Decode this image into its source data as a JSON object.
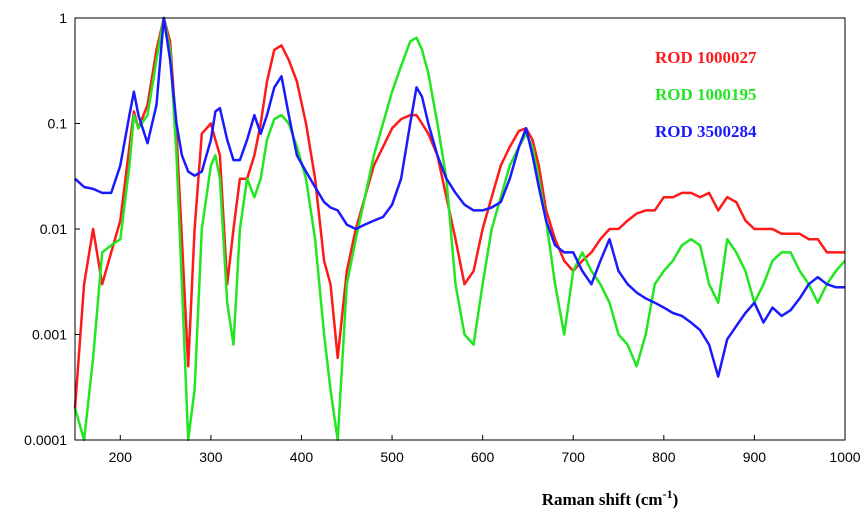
{
  "chart_data": {
    "type": "line",
    "xlabel": "Raman shift (cm",
    "xlabel_sup": "-1",
    "xlabel_close": ")",
    "xlim": [
      150,
      1000
    ],
    "ylim": [
      0.0001,
      1
    ],
    "yscale": "log",
    "grid": false,
    "legend_placement": "top-right",
    "x_ticks": [
      {
        "value": 200,
        "label": "200"
      },
      {
        "value": 300,
        "label": "300"
      },
      {
        "value": 400,
        "label": "400"
      },
      {
        "value": 500,
        "label": "500"
      },
      {
        "value": 600,
        "label": "600"
      },
      {
        "value": 700,
        "label": "700"
      },
      {
        "value": 800,
        "label": "800"
      },
      {
        "value": 900,
        "label": "900"
      },
      {
        "value": 1000,
        "label": "1000"
      }
    ],
    "y_ticks": [
      {
        "value": 1,
        "label": "1"
      },
      {
        "value": 0.1,
        "label": "0.1"
      },
      {
        "value": 0.01,
        "label": "0.01"
      },
      {
        "value": 0.001,
        "label": "0.001"
      },
      {
        "value": 0.0001,
        "label": "0.0001"
      }
    ],
    "series": [
      {
        "name": "ROD 1000027",
        "color": "#ff1a1a",
        "x": [
          150,
          160,
          170,
          180,
          190,
          200,
          210,
          215,
          220,
          230,
          240,
          248,
          255,
          262,
          268,
          275,
          282,
          290,
          300,
          305,
          310,
          318,
          325,
          332,
          340,
          348,
          355,
          362,
          370,
          378,
          386,
          395,
          405,
          415,
          425,
          432,
          440,
          450,
          460,
          470,
          480,
          490,
          500,
          510,
          520,
          527,
          533,
          540,
          550,
          560,
          570,
          580,
          590,
          600,
          610,
          620,
          630,
          640,
          648,
          655,
          662,
          670,
          680,
          690,
          700,
          710,
          720,
          730,
          740,
          750,
          760,
          770,
          780,
          790,
          800,
          810,
          820,
          830,
          840,
          850,
          860,
          870,
          880,
          890,
          900,
          910,
          920,
          930,
          940,
          950,
          960,
          970,
          980,
          990,
          1000
        ],
        "y": [
          0.0002,
          0.003,
          0.01,
          0.003,
          0.006,
          0.012,
          0.06,
          0.13,
          0.09,
          0.15,
          0.5,
          1.0,
          0.6,
          0.08,
          0.008,
          0.0005,
          0.01,
          0.08,
          0.1,
          0.07,
          0.05,
          0.003,
          0.01,
          0.03,
          0.03,
          0.05,
          0.1,
          0.25,
          0.5,
          0.55,
          0.4,
          0.25,
          0.1,
          0.03,
          0.005,
          0.003,
          0.0006,
          0.004,
          0.01,
          0.02,
          0.04,
          0.06,
          0.09,
          0.11,
          0.12,
          0.12,
          0.1,
          0.08,
          0.05,
          0.02,
          0.008,
          0.003,
          0.004,
          0.01,
          0.02,
          0.04,
          0.06,
          0.085,
          0.09,
          0.07,
          0.04,
          0.015,
          0.008,
          0.005,
          0.004,
          0.005,
          0.006,
          0.008,
          0.01,
          0.01,
          0.012,
          0.014,
          0.015,
          0.015,
          0.02,
          0.02,
          0.022,
          0.022,
          0.02,
          0.022,
          0.015,
          0.02,
          0.018,
          0.012,
          0.01,
          0.01,
          0.01,
          0.009,
          0.009,
          0.009,
          0.008,
          0.008,
          0.006,
          0.006,
          0.006
        ]
      },
      {
        "name": "ROD 1000195",
        "color": "#22e622",
        "x": [
          150,
          160,
          170,
          180,
          190,
          200,
          210,
          215,
          220,
          230,
          240,
          248,
          255,
          262,
          268,
          275,
          282,
          290,
          300,
          305,
          310,
          318,
          325,
          332,
          340,
          348,
          355,
          362,
          370,
          378,
          386,
          395,
          405,
          415,
          425,
          432,
          440,
          450,
          460,
          470,
          480,
          490,
          500,
          510,
          520,
          527,
          533,
          540,
          550,
          560,
          570,
          580,
          590,
          600,
          610,
          620,
          630,
          640,
          648,
          655,
          662,
          670,
          680,
          690,
          700,
          710,
          720,
          730,
          740,
          750,
          760,
          770,
          780,
          790,
          800,
          810,
          820,
          830,
          840,
          850,
          860,
          870,
          880,
          890,
          900,
          910,
          920,
          930,
          940,
          950,
          960,
          970,
          980,
          990,
          1000
        ],
        "y": [
          0.0002,
          0.0001,
          0.0006,
          0.006,
          0.007,
          0.008,
          0.04,
          0.12,
          0.09,
          0.12,
          0.4,
          1.0,
          0.5,
          0.05,
          0.003,
          0.0001,
          0.0003,
          0.01,
          0.04,
          0.05,
          0.03,
          0.002,
          0.0008,
          0.01,
          0.03,
          0.02,
          0.03,
          0.07,
          0.11,
          0.12,
          0.1,
          0.06,
          0.03,
          0.008,
          0.001,
          0.0003,
          0.0001,
          0.003,
          0.008,
          0.02,
          0.05,
          0.1,
          0.2,
          0.35,
          0.6,
          0.65,
          0.5,
          0.3,
          0.1,
          0.03,
          0.003,
          0.001,
          0.0008,
          0.003,
          0.01,
          0.02,
          0.04,
          0.06,
          0.08,
          0.06,
          0.03,
          0.012,
          0.003,
          0.001,
          0.004,
          0.006,
          0.004,
          0.003,
          0.002,
          0.001,
          0.0008,
          0.0005,
          0.001,
          0.003,
          0.004,
          0.005,
          0.007,
          0.008,
          0.007,
          0.003,
          0.002,
          0.008,
          0.006,
          0.004,
          0.002,
          0.003,
          0.005,
          0.006,
          0.006,
          0.004,
          0.003,
          0.002,
          0.003,
          0.004,
          0.005
        ]
      },
      {
        "name": "ROD 3500284",
        "color": "#1a1aff",
        "x": [
          150,
          160,
          170,
          180,
          190,
          200,
          210,
          215,
          220,
          230,
          240,
          248,
          255,
          262,
          268,
          275,
          282,
          290,
          300,
          305,
          310,
          318,
          325,
          332,
          340,
          348,
          355,
          362,
          370,
          378,
          386,
          395,
          405,
          415,
          425,
          432,
          440,
          450,
          460,
          470,
          480,
          490,
          500,
          510,
          520,
          527,
          533,
          540,
          550,
          560,
          570,
          580,
          590,
          600,
          610,
          620,
          630,
          640,
          648,
          655,
          662,
          670,
          680,
          690,
          700,
          710,
          720,
          730,
          740,
          750,
          760,
          770,
          780,
          790,
          800,
          810,
          820,
          830,
          840,
          850,
          860,
          870,
          880,
          890,
          900,
          910,
          920,
          930,
          940,
          950,
          960,
          970,
          980,
          990,
          1000
        ],
        "y": [
          0.03,
          0.025,
          0.024,
          0.022,
          0.022,
          0.04,
          0.12,
          0.2,
          0.12,
          0.065,
          0.15,
          1.0,
          0.4,
          0.1,
          0.05,
          0.035,
          0.032,
          0.035,
          0.07,
          0.13,
          0.14,
          0.07,
          0.045,
          0.045,
          0.07,
          0.12,
          0.08,
          0.12,
          0.22,
          0.28,
          0.12,
          0.05,
          0.035,
          0.025,
          0.018,
          0.016,
          0.015,
          0.011,
          0.01,
          0.011,
          0.012,
          0.013,
          0.017,
          0.03,
          0.1,
          0.22,
          0.18,
          0.1,
          0.05,
          0.03,
          0.022,
          0.017,
          0.015,
          0.015,
          0.016,
          0.018,
          0.03,
          0.06,
          0.09,
          0.05,
          0.025,
          0.012,
          0.007,
          0.006,
          0.006,
          0.004,
          0.003,
          0.005,
          0.008,
          0.004,
          0.003,
          0.0025,
          0.0022,
          0.002,
          0.0018,
          0.0016,
          0.0015,
          0.0013,
          0.0011,
          0.0008,
          0.0004,
          0.0009,
          0.0012,
          0.0016,
          0.002,
          0.0013,
          0.0018,
          0.0015,
          0.0017,
          0.0022,
          0.003,
          0.0035,
          0.003,
          0.0028,
          0.0028
        ]
      }
    ]
  }
}
